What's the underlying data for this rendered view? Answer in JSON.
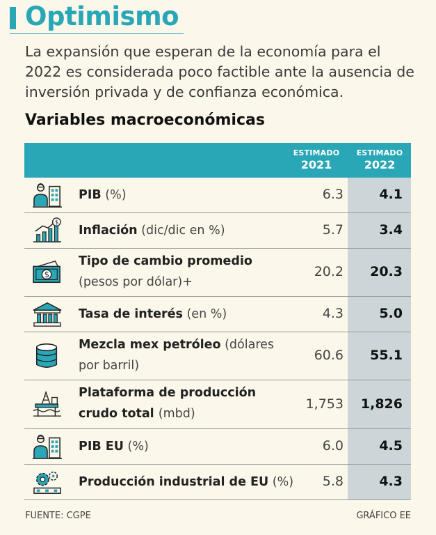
{
  "title": "Optimismo",
  "intro": "La expansión que esperan de la economía para el 2022 es considerada poco factible ante la ausencia de inversión privada y de confianza económica.",
  "subtitle": "Variables macroeconómicas",
  "colors": {
    "accent": "#2aa7b6",
    "highlight": "#ccd6d8",
    "background": "#fbf7ea"
  },
  "columns": [
    {
      "label": "ESTIMADO",
      "year": "2021"
    },
    {
      "label": "ESTIMADO",
      "year": "2022"
    }
  ],
  "chart_data": {
    "type": "table",
    "columns": [
      "2021",
      "2022"
    ],
    "rows": [
      {
        "icon": "worker-building-icon",
        "name": "PIB",
        "unit": "(%)",
        "name2": "",
        "unit2": "",
        "v2021": "6.3",
        "v2022": "4.1"
      },
      {
        "icon": "inflation-chart-icon",
        "name": "Inflación",
        "unit": "(dic/dic en %)",
        "name2": "",
        "unit2": "",
        "v2021": "5.7",
        "v2022": "3.4"
      },
      {
        "icon": "dollar-bill-icon",
        "name": "Tipo de cambio promedio",
        "unit": "",
        "name2": "",
        "unit2": "(pesos por dólar)+",
        "v2021": "20.2",
        "v2022": "20.3"
      },
      {
        "icon": "bank-icon",
        "name": "Tasa de interés",
        "unit": "(en %)",
        "name2": "",
        "unit2": "",
        "v2021": "4.3",
        "v2022": "5.0"
      },
      {
        "icon": "oil-barrel-icon",
        "name": "Mezcla mex petróleo",
        "unit": "(dólares",
        "name2": "",
        "unit2": "por barril)",
        "v2021": "60.6",
        "v2022": "55.1"
      },
      {
        "icon": "oil-platform-icon",
        "name": "Plataforma de producción",
        "unit": "",
        "name2": "crudo total",
        "unit2": "(mbd)",
        "v2021": "1,753",
        "v2022": "1,826"
      },
      {
        "icon": "worker-building-icon",
        "name": "PIB EU",
        "unit": "(%)",
        "name2": "",
        "unit2": "",
        "v2021": "6.0",
        "v2022": "4.5"
      },
      {
        "icon": "gears-factory-icon",
        "name": "Producción industrial de EU",
        "unit": "(%)",
        "name2": "",
        "unit2": "",
        "v2021": "5.8",
        "v2022": "4.3"
      }
    ]
  },
  "footer": {
    "source": "FUENTE: CGPE",
    "credit": "GRÁFICO EE"
  }
}
